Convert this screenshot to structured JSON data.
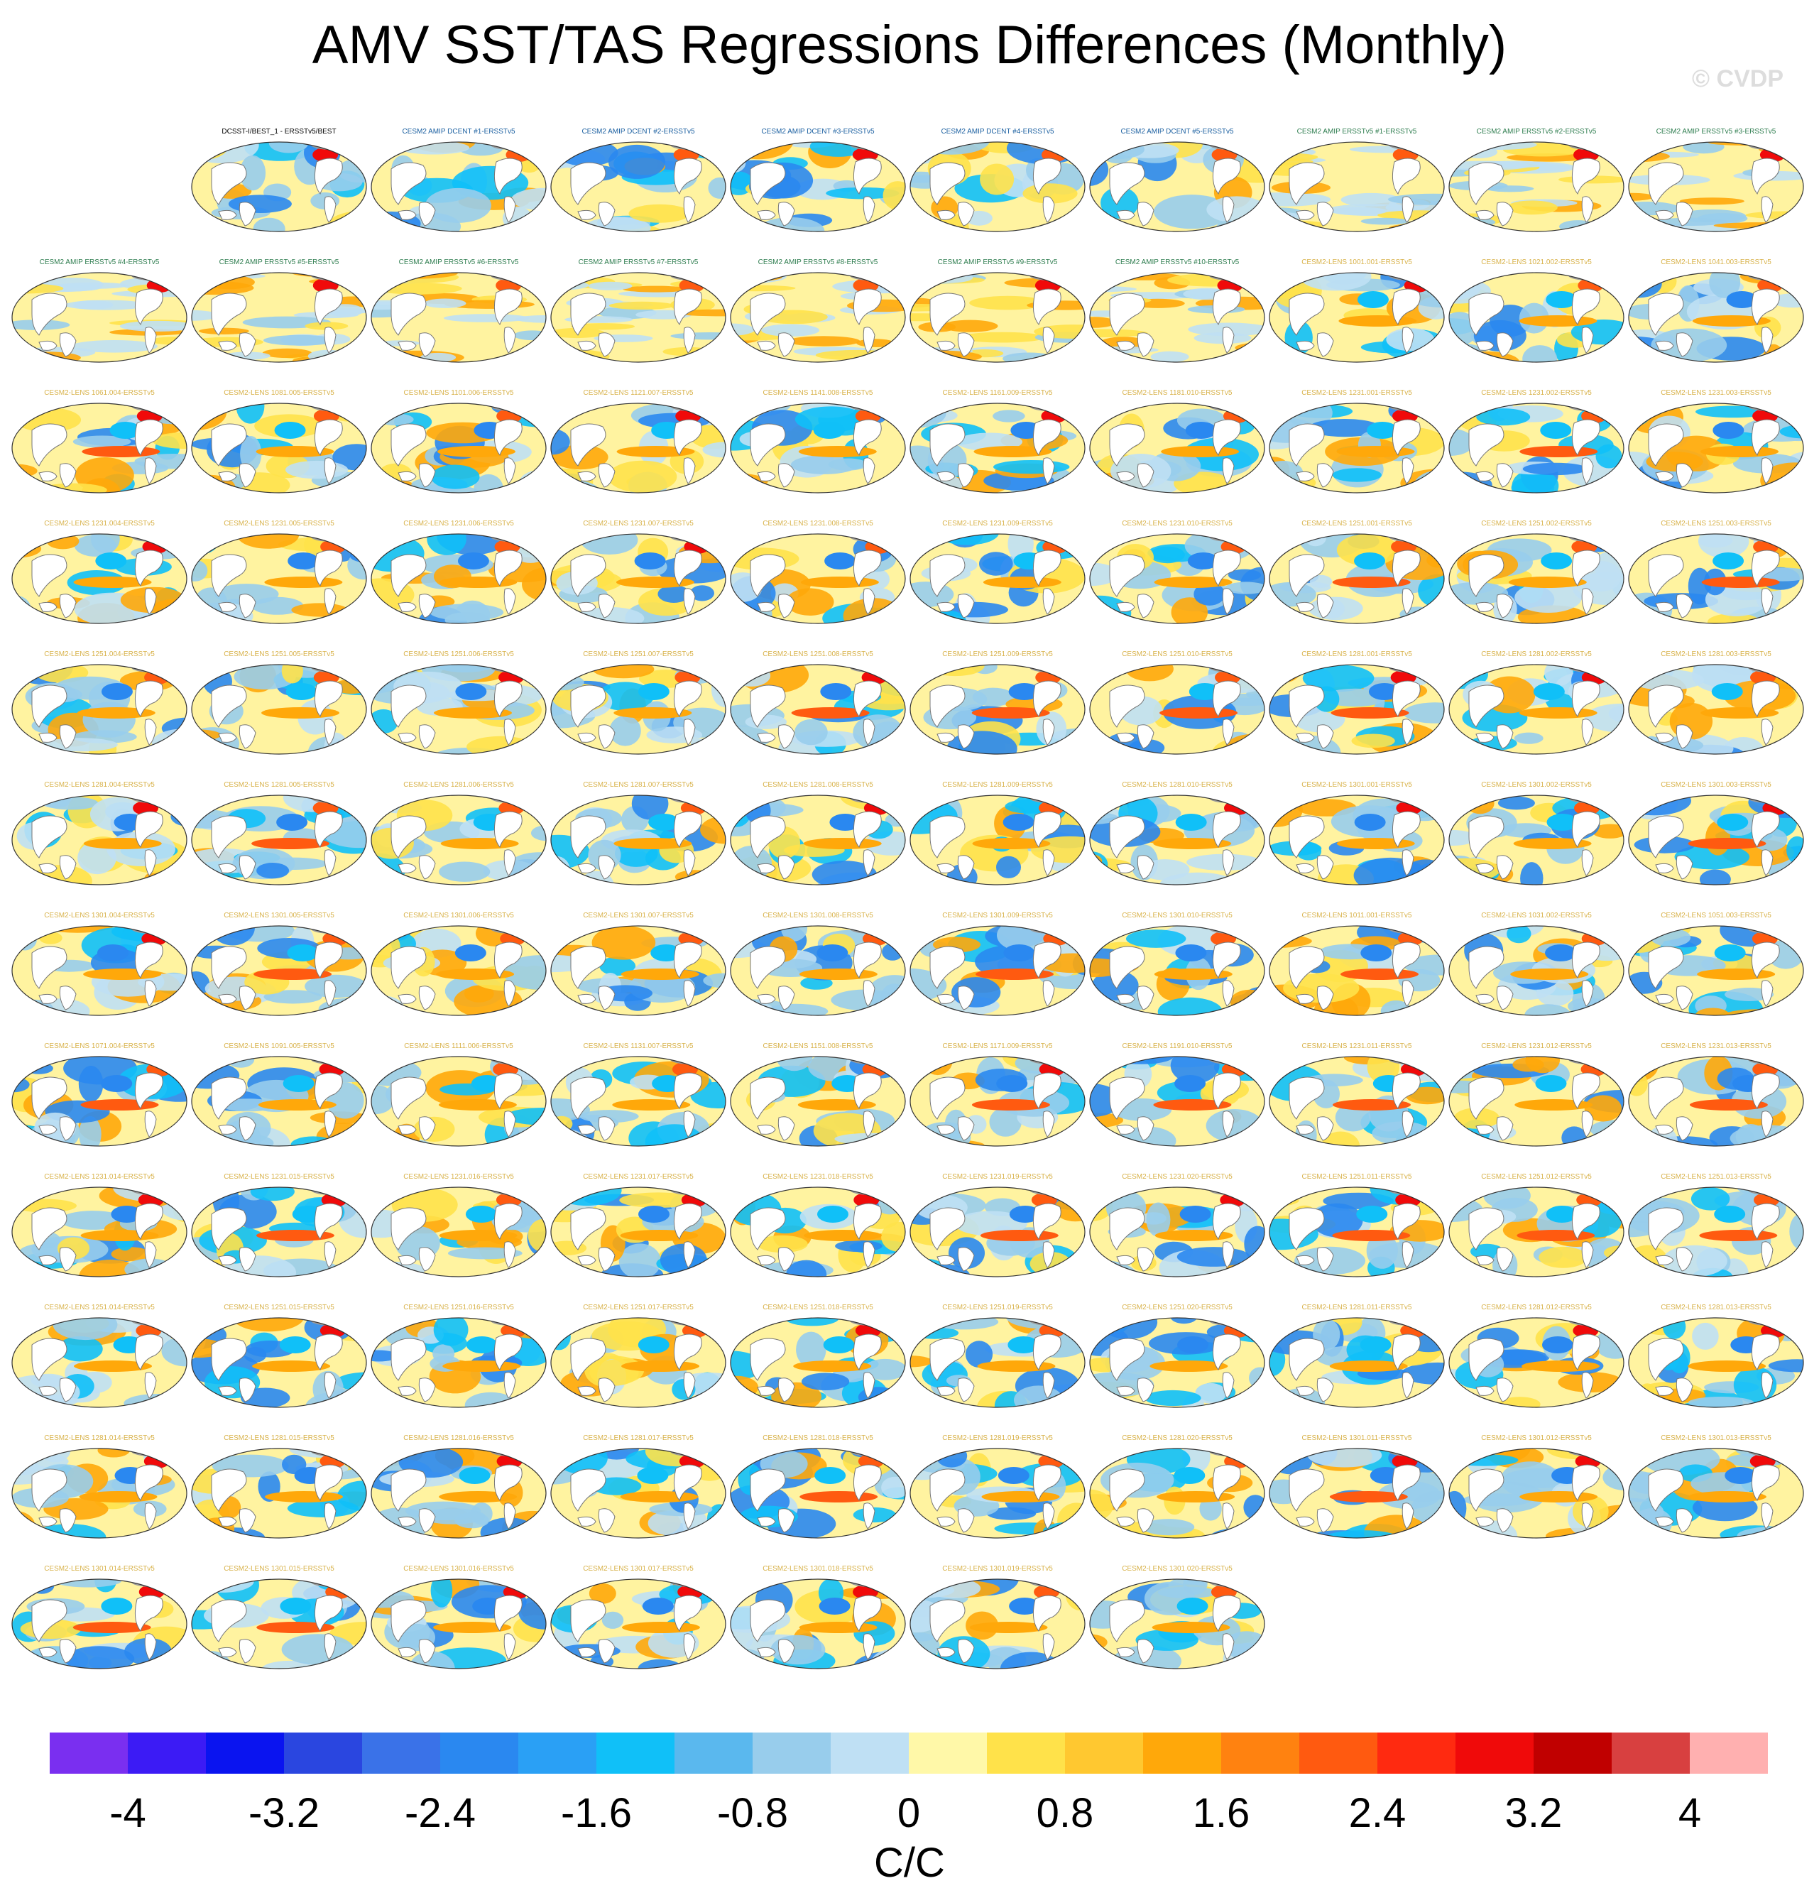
{
  "title": "AMV SST/TAS Regressions Differences (Monthly)",
  "watermark": "© CVDP",
  "chart_data": {
    "type": "heatmap",
    "title": "AMV SST/TAS Regressions Differences (Monthly)",
    "colorbar": {
      "label": "C/C",
      "range": [
        -4.4,
        4.4
      ],
      "step": 0.4,
      "tick_labels": [
        "-4",
        "-3.2",
        "-2.4",
        "-1.6",
        "-0.8",
        "0",
        "0.8",
        "1.6",
        "2.4",
        "3.2",
        "4"
      ],
      "colors": [
        "#7a2ff0",
        "#3c1bf5",
        "#0a14f0",
        "#2a46e0",
        "#3a72e8",
        "#2a88f0",
        "#2aa0f5",
        "#10c0f8",
        "#5ab8ee",
        "#98cdec",
        "#bfe0f4",
        "#fff8a8",
        "#ffe24a",
        "#ffc830",
        "#ffa80a",
        "#ff8210",
        "#ff5a10",
        "#ff2a10",
        "#f00a0a",
        "#c00000",
        "#d84040",
        "#ffb0b0"
      ]
    },
    "panels": [
      {
        "label": "DCSST-I/BEST_1 - ERSSTv5/BEST",
        "group": "obs"
      },
      {
        "label": "CESM2 AMIP DCENT #1-ERSSTv5",
        "group": "dcent"
      },
      {
        "label": "CESM2 AMIP DCENT #2-ERSSTv5",
        "group": "dcent"
      },
      {
        "label": "CESM2 AMIP DCENT #3-ERSSTv5",
        "group": "dcent"
      },
      {
        "label": "CESM2 AMIP DCENT #4-ERSSTv5",
        "group": "dcent"
      },
      {
        "label": "CESM2 AMIP DCENT #5-ERSSTv5",
        "group": "dcent"
      },
      {
        "label": "CESM2 AMIP ERSSTv5 #1-ERSSTv5",
        "group": "amip"
      },
      {
        "label": "CESM2 AMIP ERSSTv5 #2-ERSSTv5",
        "group": "amip"
      },
      {
        "label": "CESM2 AMIP ERSSTv5 #3-ERSSTv5",
        "group": "amip"
      },
      {
        "label": "CESM2 AMIP ERSSTv5 #4-ERSSTv5",
        "group": "amip"
      },
      {
        "label": "CESM2 AMIP ERSSTv5 #5-ERSSTv5",
        "group": "amip"
      },
      {
        "label": "CESM2 AMIP ERSSTv5 #6-ERSSTv5",
        "group": "amip"
      },
      {
        "label": "CESM2 AMIP ERSSTv5 #7-ERSSTv5",
        "group": "amip"
      },
      {
        "label": "CESM2 AMIP ERSSTv5 #8-ERSSTv5",
        "group": "amip"
      },
      {
        "label": "CESM2 AMIP ERSSTv5 #9-ERSSTv5",
        "group": "amip"
      },
      {
        "label": "CESM2 AMIP ERSSTv5 #10-ERSSTv5",
        "group": "amip"
      },
      {
        "label": "CESM2-LENS 1001.001-ERSSTv5",
        "group": "lens"
      },
      {
        "label": "CESM2-LENS 1021.002-ERSSTv5",
        "group": "lens"
      },
      {
        "label": "CESM2-LENS 1041.003-ERSSTv5",
        "group": "lens"
      },
      {
        "label": "CESM2-LENS 1061.004-ERSSTv5",
        "group": "lens"
      },
      {
        "label": "CESM2-LENS 1081.005-ERSSTv5",
        "group": "lens"
      },
      {
        "label": "CESM2-LENS 1101.006-ERSSTv5",
        "group": "lens"
      },
      {
        "label": "CESM2-LENS 1121.007-ERSSTv5",
        "group": "lens"
      },
      {
        "label": "CESM2-LENS 1141.008-ERSSTv5",
        "group": "lens"
      },
      {
        "label": "CESM2-LENS 1161.009-ERSSTv5",
        "group": "lens"
      },
      {
        "label": "CESM2-LENS 1181.010-ERSSTv5",
        "group": "lens"
      },
      {
        "label": "CESM2-LENS 1231.001-ERSSTv5",
        "group": "lens"
      },
      {
        "label": "CESM2-LENS 1231.002-ERSSTv5",
        "group": "lens"
      },
      {
        "label": "CESM2-LENS 1231.003-ERSSTv5",
        "group": "lens"
      },
      {
        "label": "CESM2-LENS 1231.004-ERSSTv5",
        "group": "lens"
      },
      {
        "label": "CESM2-LENS 1231.005-ERSSTv5",
        "group": "lens"
      },
      {
        "label": "CESM2-LENS 1231.006-ERSSTv5",
        "group": "lens"
      },
      {
        "label": "CESM2-LENS 1231.007-ERSSTv5",
        "group": "lens"
      },
      {
        "label": "CESM2-LENS 1231.008-ERSSTv5",
        "group": "lens"
      },
      {
        "label": "CESM2-LENS 1231.009-ERSSTv5",
        "group": "lens"
      },
      {
        "label": "CESM2-LENS 1231.010-ERSSTv5",
        "group": "lens"
      },
      {
        "label": "CESM2-LENS 1251.001-ERSSTv5",
        "group": "lens"
      },
      {
        "label": "CESM2-LENS 1251.002-ERSSTv5",
        "group": "lens"
      },
      {
        "label": "CESM2-LENS 1251.003-ERSSTv5",
        "group": "lens"
      },
      {
        "label": "CESM2-LENS 1251.004-ERSSTv5",
        "group": "lens"
      },
      {
        "label": "CESM2-LENS 1251.005-ERSSTv5",
        "group": "lens"
      },
      {
        "label": "CESM2-LENS 1251.006-ERSSTv5",
        "group": "lens"
      },
      {
        "label": "CESM2-LENS 1251.007-ERSSTv5",
        "group": "lens"
      },
      {
        "label": "CESM2-LENS 1251.008-ERSSTv5",
        "group": "lens"
      },
      {
        "label": "CESM2-LENS 1251.009-ERSSTv5",
        "group": "lens"
      },
      {
        "label": "CESM2-LENS 1251.010-ERSSTv5",
        "group": "lens"
      },
      {
        "label": "CESM2-LENS 1281.001-ERSSTv5",
        "group": "lens"
      },
      {
        "label": "CESM2-LENS 1281.002-ERSSTv5",
        "group": "lens"
      },
      {
        "label": "CESM2-LENS 1281.003-ERSSTv5",
        "group": "lens"
      },
      {
        "label": "CESM2-LENS 1281.004-ERSSTv5",
        "group": "lens"
      },
      {
        "label": "CESM2-LENS 1281.005-ERSSTv5",
        "group": "lens"
      },
      {
        "label": "CESM2-LENS 1281.006-ERSSTv5",
        "group": "lens"
      },
      {
        "label": "CESM2-LENS 1281.007-ERSSTv5",
        "group": "lens"
      },
      {
        "label": "CESM2-LENS 1281.008-ERSSTv5",
        "group": "lens"
      },
      {
        "label": "CESM2-LENS 1281.009-ERSSTv5",
        "group": "lens"
      },
      {
        "label": "CESM2-LENS 1281.010-ERSSTv5",
        "group": "lens"
      },
      {
        "label": "CESM2-LENS 1301.001-ERSSTv5",
        "group": "lens"
      },
      {
        "label": "CESM2-LENS 1301.002-ERSSTv5",
        "group": "lens"
      },
      {
        "label": "CESM2-LENS 1301.003-ERSSTv5",
        "group": "lens"
      },
      {
        "label": "CESM2-LENS 1301.004-ERSSTv5",
        "group": "lens"
      },
      {
        "label": "CESM2-LENS 1301.005-ERSSTv5",
        "group": "lens"
      },
      {
        "label": "CESM2-LENS 1301.006-ERSSTv5",
        "group": "lens"
      },
      {
        "label": "CESM2-LENS 1301.007-ERSSTv5",
        "group": "lens"
      },
      {
        "label": "CESM2-LENS 1301.008-ERSSTv5",
        "group": "lens"
      },
      {
        "label": "CESM2-LENS 1301.009-ERSSTv5",
        "group": "lens"
      },
      {
        "label": "CESM2-LENS 1301.010-ERSSTv5",
        "group": "lens"
      },
      {
        "label": "CESM2-LENS 1011.001-ERSSTv5",
        "group": "lens"
      },
      {
        "label": "CESM2-LENS 1031.002-ERSSTv5",
        "group": "lens"
      },
      {
        "label": "CESM2-LENS 1051.003-ERSSTv5",
        "group": "lens"
      },
      {
        "label": "CESM2-LENS 1071.004-ERSSTv5",
        "group": "lens"
      },
      {
        "label": "CESM2-LENS 1091.005-ERSSTv5",
        "group": "lens"
      },
      {
        "label": "CESM2-LENS 1111.006-ERSSTv5",
        "group": "lens"
      },
      {
        "label": "CESM2-LENS 1131.007-ERSSTv5",
        "group": "lens"
      },
      {
        "label": "CESM2-LENS 1151.008-ERSSTv5",
        "group": "lens"
      },
      {
        "label": "CESM2-LENS 1171.009-ERSSTv5",
        "group": "lens"
      },
      {
        "label": "CESM2-LENS 1191.010-ERSSTv5",
        "group": "lens"
      },
      {
        "label": "CESM2-LENS 1231.011-ERSSTv5",
        "group": "lens"
      },
      {
        "label": "CESM2-LENS 1231.012-ERSSTv5",
        "group": "lens"
      },
      {
        "label": "CESM2-LENS 1231.013-ERSSTv5",
        "group": "lens"
      },
      {
        "label": "CESM2-LENS 1231.014-ERSSTv5",
        "group": "lens"
      },
      {
        "label": "CESM2-LENS 1231.015-ERSSTv5",
        "group": "lens"
      },
      {
        "label": "CESM2-LENS 1231.016-ERSSTv5",
        "group": "lens"
      },
      {
        "label": "CESM2-LENS 1231.017-ERSSTv5",
        "group": "lens"
      },
      {
        "label": "CESM2-LENS 1231.018-ERSSTv5",
        "group": "lens"
      },
      {
        "label": "CESM2-LENS 1231.019-ERSSTv5",
        "group": "lens"
      },
      {
        "label": "CESM2-LENS 1231.020-ERSSTv5",
        "group": "lens"
      },
      {
        "label": "CESM2-LENS 1251.011-ERSSTv5",
        "group": "lens"
      },
      {
        "label": "CESM2-LENS 1251.012-ERSSTv5",
        "group": "lens"
      },
      {
        "label": "CESM2-LENS 1251.013-ERSSTv5",
        "group": "lens"
      },
      {
        "label": "CESM2-LENS 1251.014-ERSSTv5",
        "group": "lens"
      },
      {
        "label": "CESM2-LENS 1251.015-ERSSTv5",
        "group": "lens"
      },
      {
        "label": "CESM2-LENS 1251.016-ERSSTv5",
        "group": "lens"
      },
      {
        "label": "CESM2-LENS 1251.017-ERSSTv5",
        "group": "lens"
      },
      {
        "label": "CESM2-LENS 1251.018-ERSSTv5",
        "group": "lens"
      },
      {
        "label": "CESM2-LENS 1251.019-ERSSTv5",
        "group": "lens"
      },
      {
        "label": "CESM2-LENS 1251.020-ERSSTv5",
        "group": "lens"
      },
      {
        "label": "CESM2-LENS 1281.011-ERSSTv5",
        "group": "lens"
      },
      {
        "label": "CESM2-LENS 1281.012-ERSSTv5",
        "group": "lens"
      },
      {
        "label": "CESM2-LENS 1281.013-ERSSTv5",
        "group": "lens"
      },
      {
        "label": "CESM2-LENS 1281.014-ERSSTv5",
        "group": "lens"
      },
      {
        "label": "CESM2-LENS 1281.015-ERSSTv5",
        "group": "lens"
      },
      {
        "label": "CESM2-LENS 1281.016-ERSSTv5",
        "group": "lens"
      },
      {
        "label": "CESM2-LENS 1281.017-ERSSTv5",
        "group": "lens"
      },
      {
        "label": "CESM2-LENS 1281.018-ERSSTv5",
        "group": "lens"
      },
      {
        "label": "CESM2-LENS 1281.019-ERSSTv5",
        "group": "lens"
      },
      {
        "label": "CESM2-LENS 1281.020-ERSSTv5",
        "group": "lens"
      },
      {
        "label": "CESM2-LENS 1301.011-ERSSTv5",
        "group": "lens"
      },
      {
        "label": "CESM2-LENS 1301.012-ERSSTv5",
        "group": "lens"
      },
      {
        "label": "CESM2-LENS 1301.013-ERSSTv5",
        "group": "lens"
      },
      {
        "label": "CESM2-LENS 1301.014-ERSSTv5",
        "group": "lens"
      },
      {
        "label": "CESM2-LENS 1301.015-ERSSTv5",
        "group": "lens"
      },
      {
        "label": "CESM2-LENS 1301.016-ERSSTv5",
        "group": "lens"
      },
      {
        "label": "CESM2-LENS 1301.017-ERSSTv5",
        "group": "lens"
      },
      {
        "label": "CESM2-LENS 1301.018-ERSSTv5",
        "group": "lens"
      },
      {
        "label": "CESM2-LENS 1301.019-ERSSTv5",
        "group": "lens"
      },
      {
        "label": "CESM2-LENS 1301.020-ERSSTv5",
        "group": "lens"
      }
    ]
  },
  "label_colors": {
    "obs": "#000000",
    "dcent": "#1a5fa0",
    "amip": "#2e7d4f",
    "lens": "#d8b24a"
  },
  "map_colors": {
    "ocean_base": "#fff3a0",
    "land": "#ffffff",
    "coast": "#777777",
    "ice": "#999999"
  }
}
